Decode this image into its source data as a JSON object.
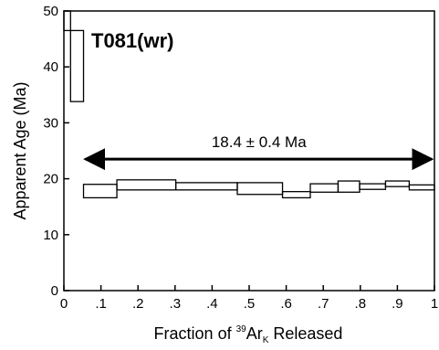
{
  "chart_data": {
    "type": "age-spectrum",
    "sample_label": "T081(wr)",
    "xlabel": {
      "prefix": "Fraction of ",
      "sup": "39",
      "base": "Ar",
      "sub": "K",
      "suffix": " Released"
    },
    "ylabel": "Apparent Age (Ma)",
    "xlim": [
      0,
      1
    ],
    "ylim": [
      0,
      50
    ],
    "x_ticks": [
      {
        "value": 0,
        "label": "0"
      },
      {
        "value": 0.1,
        "label": ".1"
      },
      {
        "value": 0.2,
        "label": ".2"
      },
      {
        "value": 0.3,
        "label": ".3"
      },
      {
        "value": 0.4,
        "label": ".4"
      },
      {
        "value": 0.5,
        "label": ".5"
      },
      {
        "value": 0.6,
        "label": ".6"
      },
      {
        "value": 0.7,
        "label": ".7"
      },
      {
        "value": 0.8,
        "label": ".8"
      },
      {
        "value": 0.9,
        "label": ".9"
      },
      {
        "value": 1,
        "label": "1"
      }
    ],
    "y_ticks": [
      {
        "value": 0,
        "label": "0"
      },
      {
        "value": 10,
        "label": "10"
      },
      {
        "value": 20,
        "label": "20"
      },
      {
        "value": 30,
        "label": "30"
      },
      {
        "value": 40,
        "label": "40"
      },
      {
        "value": 50,
        "label": "50"
      }
    ],
    "steps": [
      {
        "x0": 0.0,
        "x1": 0.018,
        "y_low": 46.5,
        "y_high": 50.0
      },
      {
        "x0": 0.018,
        "x1": 0.053,
        "y_low": 33.8,
        "y_high": 46.5
      },
      {
        "x0": 0.053,
        "x1": 0.143,
        "y_low": 16.6,
        "y_high": 19.0
      },
      {
        "x0": 0.143,
        "x1": 0.302,
        "y_low": 18.0,
        "y_high": 19.8
      },
      {
        "x0": 0.302,
        "x1": 0.468,
        "y_low": 18.0,
        "y_high": 19.3
      },
      {
        "x0": 0.468,
        "x1": 0.59,
        "y_low": 17.2,
        "y_high": 19.3
      },
      {
        "x0": 0.59,
        "x1": 0.665,
        "y_low": 16.6,
        "y_high": 17.7
      },
      {
        "x0": 0.665,
        "x1": 0.74,
        "y_low": 17.6,
        "y_high": 19.1
      },
      {
        "x0": 0.74,
        "x1": 0.798,
        "y_low": 17.6,
        "y_high": 19.6
      },
      {
        "x0": 0.798,
        "x1": 0.868,
        "y_low": 18.1,
        "y_high": 19.1
      },
      {
        "x0": 0.868,
        "x1": 0.932,
        "y_low": 18.6,
        "y_high": 19.6
      },
      {
        "x0": 0.932,
        "x1": 1.0,
        "y_low": 18.0,
        "y_high": 18.9
      }
    ],
    "plateau": {
      "label": "18.4 ± 0.4 Ma",
      "x_start": 0.053,
      "x_end": 1.0,
      "y": 23.5
    },
    "grid": false,
    "legend": "none"
  }
}
